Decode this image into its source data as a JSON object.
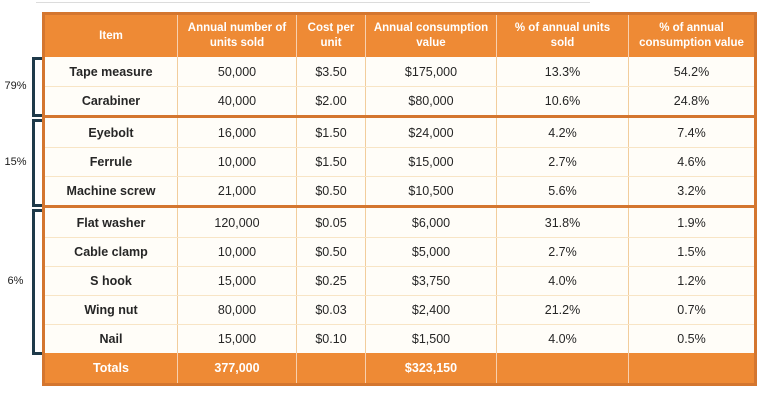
{
  "colors": {
    "header_orange": "#EE8A35",
    "frame_orange": "#D4762F",
    "cell_separator": "#F2CD9C",
    "row_separator": "#F8E5C6",
    "row_background": "#FFFDF8",
    "bracket_dark": "#1E3A4A",
    "body_text": "#262626",
    "header_text": "#FFFFFF"
  },
  "chart_data": {
    "type": "table",
    "title": "",
    "columns": [
      "Item",
      "Annual number of units sold",
      "Cost per unit",
      "Annual consumption value",
      "% of annual units sold",
      "% of annual consumption value"
    ],
    "rows": [
      {
        "item": "Tape measure",
        "units_sold": "50,000",
        "cost_per_unit": "$3.50",
        "consumption_value": "$175,000",
        "pct_units_sold": "13.3%",
        "pct_consumption_value": "54.2%"
      },
      {
        "item": "Carabiner",
        "units_sold": "40,000",
        "cost_per_unit": "$2.00",
        "consumption_value": "$80,000",
        "pct_units_sold": "10.6%",
        "pct_consumption_value": "24.8%"
      },
      {
        "item": "Eyebolt",
        "units_sold": "16,000",
        "cost_per_unit": "$1.50",
        "consumption_value": "$24,000",
        "pct_units_sold": "4.2%",
        "pct_consumption_value": "7.4%"
      },
      {
        "item": "Ferrule",
        "units_sold": "10,000",
        "cost_per_unit": "$1.50",
        "consumption_value": "$15,000",
        "pct_units_sold": "2.7%",
        "pct_consumption_value": "4.6%"
      },
      {
        "item": "Machine screw",
        "units_sold": "21,000",
        "cost_per_unit": "$0.50",
        "consumption_value": "$10,500",
        "pct_units_sold": "5.6%",
        "pct_consumption_value": "3.2%"
      },
      {
        "item": "Flat washer",
        "units_sold": "120,000",
        "cost_per_unit": "$0.05",
        "consumption_value": "$6,000",
        "pct_units_sold": "31.8%",
        "pct_consumption_value": "1.9%"
      },
      {
        "item": "Cable clamp",
        "units_sold": "10,000",
        "cost_per_unit": "$0.50",
        "consumption_value": "$5,000",
        "pct_units_sold": "2.7%",
        "pct_consumption_value": "1.5%"
      },
      {
        "item": "S hook",
        "units_sold": "15,000",
        "cost_per_unit": "$0.25",
        "consumption_value": "$3,750",
        "pct_units_sold": "4.0%",
        "pct_consumption_value": "1.2%"
      },
      {
        "item": "Wing nut",
        "units_sold": "80,000",
        "cost_per_unit": "$0.03",
        "consumption_value": "$2,400",
        "pct_units_sold": "21.2%",
        "pct_consumption_value": "0.7%"
      },
      {
        "item": "Nail",
        "units_sold": "15,000",
        "cost_per_unit": "$0.10",
        "consumption_value": "$1,500",
        "pct_units_sold": "4.0%",
        "pct_consumption_value": "0.5%"
      }
    ],
    "totals": {
      "label": "Totals",
      "units_sold": "377,000",
      "cost_per_unit": "",
      "consumption_value": "$323,150",
      "pct_units_sold": "",
      "pct_consumption_value": ""
    },
    "groups": [
      {
        "label": "79%",
        "rows": [
          "Tape measure",
          "Carabiner"
        ]
      },
      {
        "label": "15%",
        "rows": [
          "Eyebolt",
          "Ferrule",
          "Machine screw"
        ]
      },
      {
        "label": "6%",
        "rows": [
          "Flat washer",
          "Cable clamp",
          "S hook",
          "Wing nut",
          "Nail"
        ]
      }
    ],
    "layout": {
      "grid": "on",
      "group_brackets_position": "left"
    }
  }
}
